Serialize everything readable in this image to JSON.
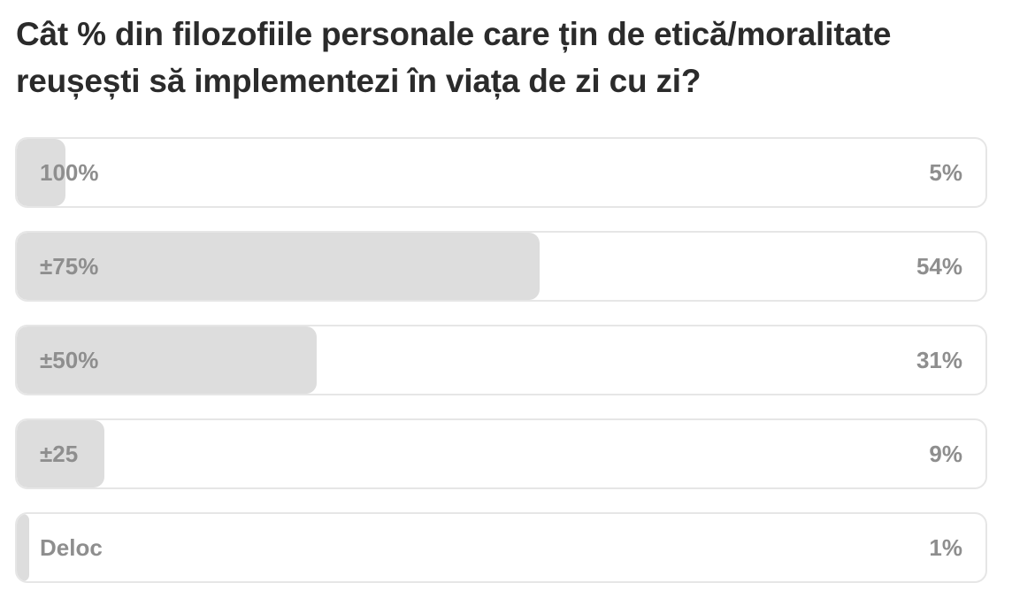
{
  "poll": {
    "question": "Cât % din filozofiile personale care țin de etică/moralitate reușești să implementezi în viața de zi cu zi?",
    "options": [
      {
        "label": "100%",
        "percent_text": "5%",
        "share": 0.05
      },
      {
        "label": "±75%",
        "percent_text": "54%",
        "share": 0.54
      },
      {
        "label": "±50%",
        "percent_text": "31%",
        "share": 0.31
      },
      {
        "label": "±25",
        "percent_text": "9%",
        "share": 0.09
      },
      {
        "label": "Deloc",
        "percent_text": "1%",
        "share": 0.01
      }
    ]
  },
  "colors": {
    "fill": "#dddddd",
    "border": "#e6e6e6",
    "text_muted": "#8e8e8e",
    "question_text": "#2b2b2b"
  }
}
